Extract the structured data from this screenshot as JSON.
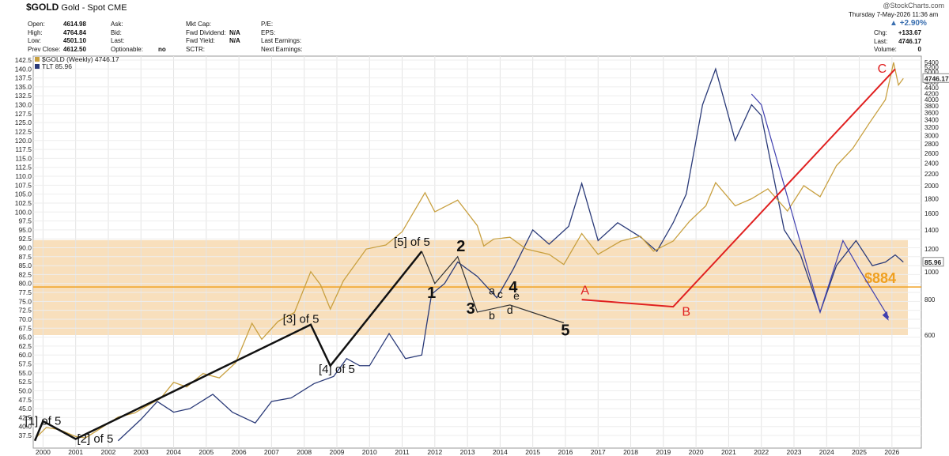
{
  "header": {
    "symbol": "$GOLD",
    "name": "Gold - Spot",
    "exchange": "CME",
    "datetime": "Thursday  7-May-2026 11:36 am",
    "logo": "@StockCharts.com",
    "change_pct": "+2.90%",
    "fields_col1": [
      {
        "label": "Open:",
        "value": "4614.98"
      },
      {
        "label": "High:",
        "value": "4764.84"
      },
      {
        "label": "Low:",
        "value": "4501.10"
      },
      {
        "label": "Prev Close:",
        "value": "4612.50"
      }
    ],
    "fields_col2": [
      {
        "label": "Ask:",
        "value": ""
      },
      {
        "label": "Bid:",
        "value": ""
      },
      {
        "label": "Last:",
        "value": ""
      },
      {
        "label": "Optionable:",
        "value": "no"
      }
    ],
    "fields_col3": [
      {
        "label": "Mkt Cap:",
        "value": ""
      },
      {
        "label": "Fwd Dividend:",
        "value": "N/A"
      },
      {
        "label": "Fwd Yield:",
        "value": "N/A"
      },
      {
        "label": "SCTR:",
        "value": ""
      }
    ],
    "fields_col4": [
      {
        "label": "P/E:",
        "value": ""
      },
      {
        "label": "EPS:",
        "value": ""
      },
      {
        "label": "Last Earnings:",
        "value": ""
      },
      {
        "label": "Next Earnings:",
        "value": ""
      }
    ],
    "fields_right": [
      {
        "label": "Chg:",
        "value": "+133.67"
      },
      {
        "label": "Last:",
        "value": "4746.17"
      },
      {
        "label": "Volume:",
        "value": "0"
      }
    ]
  },
  "chart_data": {
    "type": "line",
    "legend": [
      {
        "name": "$GOLD (Weekly) 4746.17",
        "color": "#c8a040"
      },
      {
        "name": "TLT 85.96",
        "color": "#2a3a78"
      }
    ],
    "x_ticks": [
      "2000",
      "2001",
      "2002",
      "2003",
      "2004",
      "2005",
      "2006",
      "2007",
      "2008",
      "2009",
      "2010",
      "2011",
      "2012",
      "2013",
      "2014",
      "2015",
      "2016",
      "2017",
      "2018",
      "2019",
      "2020",
      "2021",
      "2022",
      "2023",
      "2024",
      "2025",
      "2026"
    ],
    "left_axis": {
      "ticks": [
        "142.5",
        "140.0",
        "137.5",
        "135.0",
        "132.5",
        "130.0",
        "127.5",
        "125.0",
        "122.5",
        "120.0",
        "117.5",
        "115.0",
        "112.5",
        "110.0",
        "107.5",
        "105.0",
        "102.5",
        "100.0",
        "97.5",
        "95.0",
        "92.5",
        "90.0",
        "87.5",
        "85.0",
        "82.5",
        "80.0",
        "77.5",
        "75.0",
        "72.5",
        "70.0",
        "67.5",
        "65.0",
        "62.5",
        "60.0",
        "57.5",
        "55.0",
        "52.5",
        "50.0",
        "47.5",
        "45.0",
        "42.5",
        "40.0",
        "37.5"
      ]
    },
    "right_axis": {
      "scale": "log",
      "ticks": [
        "5400",
        "5200",
        "5000",
        "4800",
        "4600",
        "4400",
        "4200",
        "4000",
        "3800",
        "3600",
        "3400",
        "3200",
        "3000",
        "2800",
        "2600",
        "2400",
        "2200",
        "2000",
        "1800",
        "1600",
        "1400",
        "1200",
        "1000",
        "800",
        "600"
      ]
    },
    "last_gold_label": "4746.17",
    "last_tlt_label": "85.96",
    "level": {
      "label": "$884",
      "value": 884,
      "color": "#f0a020"
    },
    "support_zone": {
      "from": 600,
      "to": 1290,
      "color": "#f7d9b0"
    },
    "gold_series": [
      {
        "x": 1999.75,
        "y": 260
      },
      {
        "x": 2000.1,
        "y": 285
      },
      {
        "x": 2000.5,
        "y": 280
      },
      {
        "x": 2001.0,
        "y": 265
      },
      {
        "x": 2001.3,
        "y": 262
      },
      {
        "x": 2001.7,
        "y": 280
      },
      {
        "x": 2002.3,
        "y": 310
      },
      {
        "x": 2002.8,
        "y": 320
      },
      {
        "x": 2003.2,
        "y": 340
      },
      {
        "x": 2003.6,
        "y": 360
      },
      {
        "x": 2004.0,
        "y": 410
      },
      {
        "x": 2004.4,
        "y": 395
      },
      {
        "x": 2004.9,
        "y": 440
      },
      {
        "x": 2005.4,
        "y": 425
      },
      {
        "x": 2005.9,
        "y": 480
      },
      {
        "x": 2006.4,
        "y": 660
      },
      {
        "x": 2006.7,
        "y": 580
      },
      {
        "x": 2007.2,
        "y": 670
      },
      {
        "x": 2007.7,
        "y": 720
      },
      {
        "x": 2008.2,
        "y": 1000
      },
      {
        "x": 2008.5,
        "y": 900
      },
      {
        "x": 2008.8,
        "y": 740
      },
      {
        "x": 2009.2,
        "y": 930
      },
      {
        "x": 2009.9,
        "y": 1200
      },
      {
        "x": 2010.5,
        "y": 1240
      },
      {
        "x": 2011.0,
        "y": 1380
      },
      {
        "x": 2011.7,
        "y": 1890
      },
      {
        "x": 2012.0,
        "y": 1620
      },
      {
        "x": 2012.7,
        "y": 1780
      },
      {
        "x": 2013.3,
        "y": 1450
      },
      {
        "x": 2013.5,
        "y": 1230
      },
      {
        "x": 2013.8,
        "y": 1300
      },
      {
        "x": 2014.3,
        "y": 1320
      },
      {
        "x": 2014.8,
        "y": 1200
      },
      {
        "x": 2015.5,
        "y": 1150
      },
      {
        "x": 2015.95,
        "y": 1060
      },
      {
        "x": 2016.5,
        "y": 1360
      },
      {
        "x": 2017.0,
        "y": 1150
      },
      {
        "x": 2017.7,
        "y": 1280
      },
      {
        "x": 2018.3,
        "y": 1330
      },
      {
        "x": 2018.7,
        "y": 1180
      },
      {
        "x": 2019.3,
        "y": 1280
      },
      {
        "x": 2019.8,
        "y": 1500
      },
      {
        "x": 2020.3,
        "y": 1700
      },
      {
        "x": 2020.6,
        "y": 2050
      },
      {
        "x": 2021.2,
        "y": 1700
      },
      {
        "x": 2021.7,
        "y": 1800
      },
      {
        "x": 2022.2,
        "y": 1950
      },
      {
        "x": 2022.8,
        "y": 1630
      },
      {
        "x": 2023.3,
        "y": 2000
      },
      {
        "x": 2023.8,
        "y": 1830
      },
      {
        "x": 2024.3,
        "y": 2350
      },
      {
        "x": 2024.8,
        "y": 2700
      },
      {
        "x": 2025.3,
        "y": 3300
      },
      {
        "x": 2025.8,
        "y": 4000
      },
      {
        "x": 2026.05,
        "y": 5400
      },
      {
        "x": 2026.2,
        "y": 4500
      },
      {
        "x": 2026.35,
        "y": 4746
      }
    ],
    "tlt_series": [
      {
        "x": 2002.3,
        "y": 36
      },
      {
        "x": 2003.0,
        "y": 42
      },
      {
        "x": 2003.5,
        "y": 47
      },
      {
        "x": 2004.0,
        "y": 44
      },
      {
        "x": 2004.5,
        "y": 45
      },
      {
        "x": 2005.2,
        "y": 49
      },
      {
        "x": 2005.8,
        "y": 44
      },
      {
        "x": 2006.5,
        "y": 41
      },
      {
        "x": 2007.0,
        "y": 47
      },
      {
        "x": 2007.6,
        "y": 48
      },
      {
        "x": 2008.3,
        "y": 52
      },
      {
        "x": 2008.9,
        "y": 54
      },
      {
        "x": 2009.3,
        "y": 59
      },
      {
        "x": 2009.7,
        "y": 57
      },
      {
        "x": 2010.0,
        "y": 57
      },
      {
        "x": 2010.6,
        "y": 66
      },
      {
        "x": 2011.1,
        "y": 59
      },
      {
        "x": 2011.6,
        "y": 60
      },
      {
        "x": 2011.9,
        "y": 77
      },
      {
        "x": 2012.3,
        "y": 80
      },
      {
        "x": 2012.7,
        "y": 86
      },
      {
        "x": 2013.3,
        "y": 82
      },
      {
        "x": 2013.9,
        "y": 76
      },
      {
        "x": 2014.4,
        "y": 84
      },
      {
        "x": 2015.0,
        "y": 95
      },
      {
        "x": 2015.5,
        "y": 91
      },
      {
        "x": 2016.1,
        "y": 96
      },
      {
        "x": 2016.5,
        "y": 108
      },
      {
        "x": 2017.0,
        "y": 92
      },
      {
        "x": 2017.6,
        "y": 97
      },
      {
        "x": 2018.3,
        "y": 93
      },
      {
        "x": 2018.8,
        "y": 89
      },
      {
        "x": 2019.3,
        "y": 97
      },
      {
        "x": 2019.7,
        "y": 105
      },
      {
        "x": 2020.2,
        "y": 130
      },
      {
        "x": 2020.6,
        "y": 140
      },
      {
        "x": 2021.2,
        "y": 120
      },
      {
        "x": 2021.7,
        "y": 130
      },
      {
        "x": 2022.0,
        "y": 127
      },
      {
        "x": 2022.7,
        "y": 95
      },
      {
        "x": 2023.2,
        "y": 88
      },
      {
        "x": 2023.8,
        "y": 72
      },
      {
        "x": 2024.3,
        "y": 85
      },
      {
        "x": 2024.9,
        "y": 92
      },
      {
        "x": 2025.4,
        "y": 85
      },
      {
        "x": 2025.8,
        "y": 86
      },
      {
        "x": 2026.1,
        "y": 88
      },
      {
        "x": 2026.35,
        "y": 86
      }
    ],
    "wave_lines": [
      {
        "color": "#111111",
        "width": 2.5,
        "points": [
          [
            1999.75,
            36
          ],
          [
            2000.0,
            41.5
          ],
          [
            2001.0,
            36.5
          ],
          [
            2008.2,
            68.5
          ],
          [
            2008.8,
            57
          ],
          [
            2011.6,
            89
          ]
        ]
      },
      {
        "color": "#333333",
        "width": 1.2,
        "points": [
          [
            2011.6,
            89
          ],
          [
            2012.0,
            80
          ],
          [
            2012.7,
            87.5
          ],
          [
            2013.3,
            72
          ],
          [
            2013.8,
            73
          ],
          [
            2014.3,
            74
          ],
          [
            2015.95,
            69
          ]
        ]
      },
      {
        "color": "#e02020",
        "width": 2,
        "points": [
          [
            2016.5,
            75.5
          ],
          [
            2019.3,
            73.5
          ],
          [
            2026.1,
            140
          ]
        ]
      },
      {
        "color": "#4040b0",
        "width": 1.2,
        "points": [
          [
            2021.7,
            133
          ],
          [
            2022.0,
            130
          ],
          [
            2023.8,
            72
          ],
          [
            2024.5,
            92
          ],
          [
            2025.0,
            84
          ],
          [
            2025.9,
            70.5
          ]
        ]
      }
    ],
    "annotations": [
      {
        "text": "[1] of 5",
        "x": 2000.0,
        "y": 40.5
      },
      {
        "text": "[2] of 5",
        "x": 2001.6,
        "y": 35.5
      },
      {
        "text": "[3] of 5",
        "x": 2007.9,
        "y": 69
      },
      {
        "text": "[4] of 5",
        "x": 2009.0,
        "y": 55
      },
      {
        "text": "[5] of 5",
        "x": 2011.3,
        "y": 90.5
      },
      {
        "text": "1",
        "x": 2011.9,
        "y": 76
      },
      {
        "text": "2",
        "x": 2012.8,
        "y": 89
      },
      {
        "text": "3",
        "x": 2013.1,
        "y": 71.5
      },
      {
        "text": "4",
        "x": 2014.4,
        "y": 77.5
      },
      {
        "text": "5",
        "x": 2016.0,
        "y": 65.5
      },
      {
        "text": "a",
        "x": 2013.75,
        "y": 77
      },
      {
        "text": "b",
        "x": 2013.75,
        "y": 70
      },
      {
        "text": "c",
        "x": 2014.0,
        "y": 76
      },
      {
        "text": "d",
        "x": 2014.3,
        "y": 71.5
      },
      {
        "text": "e",
        "x": 2014.5,
        "y": 75.5
      },
      {
        "text": "A",
        "x": 2016.6,
        "y": 77
      },
      {
        "text": "B",
        "x": 2019.7,
        "y": 71
      },
      {
        "text": "C",
        "x": 2025.7,
        "y": 139
      }
    ]
  }
}
